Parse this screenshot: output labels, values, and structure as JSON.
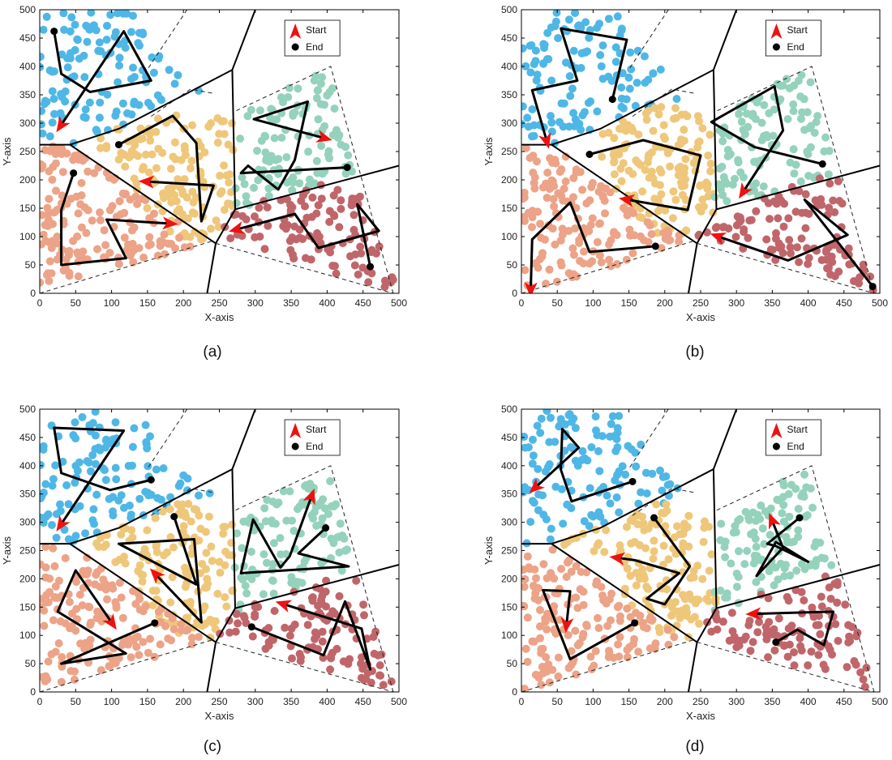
{
  "colors": {
    "blue": "#4fb7e6",
    "yellow": "#efc77a",
    "green": "#94d2bc",
    "salmon": "#eca387",
    "red": "#c0666a",
    "path": "#000000",
    "start": "#ee1111"
  },
  "chart_data": [
    {
      "type": "scatter",
      "caption": "(a)",
      "xlabel": "X-axis",
      "ylabel": "Y-axis",
      "xlim": [
        0,
        500
      ],
      "ylim": [
        0,
        500
      ],
      "xticks": [
        "0",
        "50",
        "100",
        "150",
        "200",
        "250",
        "300",
        "350",
        "400",
        "450",
        "500"
      ],
      "yticks": [
        "0",
        "50",
        "100",
        "150",
        "200",
        "250",
        "300",
        "350",
        "400",
        "450",
        "500"
      ],
      "legend": {
        "position": "top-right",
        "start": "Start",
        "end": "End"
      },
      "paths": [
        {
          "region": "blue",
          "points": [
            [
              20,
              462
            ],
            [
              30,
              387
            ],
            [
              70,
              355
            ],
            [
              155,
              375
            ],
            [
              117,
              462
            ],
            [
              30,
              297
            ]
          ]
        },
        {
          "region": "yellow",
          "points": [
            [
              110,
              262
            ],
            [
              185,
              313
            ],
            [
              218,
              265
            ],
            [
              225,
              127
            ],
            [
              242,
              190
            ],
            [
              150,
              197
            ]
          ]
        },
        {
          "region": "green",
          "points": [
            [
              428,
              222
            ],
            [
              280,
              212
            ],
            [
              290,
              225
            ],
            [
              332,
              183
            ],
            [
              355,
              235
            ],
            [
              373,
              338
            ],
            [
              298,
              307
            ],
            [
              395,
              274
            ]
          ]
        },
        {
          "region": "salmon",
          "points": [
            [
              47,
              212
            ],
            [
              30,
              147
            ],
            [
              30,
              50
            ],
            [
              120,
              62
            ],
            [
              93,
              130
            ],
            [
              180,
              123
            ]
          ]
        },
        {
          "region": "red",
          "points": [
            [
              460,
              47
            ],
            [
              442,
              157
            ],
            [
              472,
              110
            ],
            [
              388,
              80
            ],
            [
              355,
              140
            ],
            [
              275,
              113
            ]
          ]
        }
      ]
    },
    {
      "type": "scatter",
      "caption": "(b)",
      "xlabel": "X-axis",
      "ylabel": "Y-axis",
      "xlim": [
        0,
        500
      ],
      "ylim": [
        0,
        500
      ],
      "xticks": [
        "0",
        "50",
        "100",
        "150",
        "200",
        "250",
        "300",
        "350",
        "400",
        "450",
        "500"
      ],
      "yticks": [
        "0",
        "50",
        "100",
        "150",
        "200",
        "250",
        "300",
        "350",
        "400",
        "450",
        "500"
      ],
      "legend": {
        "position": "top-right",
        "start": "Start",
        "end": "End"
      },
      "paths": [
        {
          "region": "blue",
          "points": [
            [
              127,
              342
            ],
            [
              147,
              447
            ],
            [
              55,
              467
            ],
            [
              78,
              375
            ],
            [
              15,
              358
            ],
            [
              35,
              270
            ]
          ]
        },
        {
          "region": "yellow",
          "points": [
            [
              95,
              245
            ],
            [
              170,
              270
            ],
            [
              250,
              243
            ],
            [
              232,
              147
            ],
            [
              148,
              165
            ]
          ]
        },
        {
          "region": "green",
          "points": [
            [
              420,
              228
            ],
            [
              325,
              258
            ],
            [
              265,
              302
            ],
            [
              353,
              365
            ],
            [
              365,
              287
            ],
            [
              310,
              180
            ]
          ]
        },
        {
          "region": "salmon",
          "points": [
            [
              187,
              83
            ],
            [
              95,
              73
            ],
            [
              68,
              160
            ],
            [
              15,
              95
            ],
            [
              13,
              8
            ]
          ]
        },
        {
          "region": "red",
          "points": [
            [
              490,
              12
            ],
            [
              395,
              165
            ],
            [
              455,
              103
            ],
            [
              372,
              58
            ],
            [
              275,
              100
            ]
          ]
        }
      ]
    },
    {
      "type": "scatter",
      "caption": "(c)",
      "xlabel": "X-axis",
      "ylabel": "Y-axis",
      "xlim": [
        0,
        500
      ],
      "ylim": [
        0,
        500
      ],
      "xticks": [
        "0",
        "50",
        "100",
        "150",
        "200",
        "250",
        "300",
        "350",
        "400",
        "450",
        "500"
      ],
      "yticks": [
        "0",
        "50",
        "100",
        "150",
        "200",
        "250",
        "300",
        "350",
        "400",
        "450",
        "500"
      ],
      "legend": {
        "position": "top-right",
        "start": "Start",
        "end": "End"
      },
      "paths": [
        {
          "region": "blue",
          "points": [
            [
              155,
              375
            ],
            [
              98,
              357
            ],
            [
              30,
              387
            ],
            [
              20,
              467
            ],
            [
              117,
              462
            ],
            [
              30,
              297
            ]
          ]
        },
        {
          "region": "yellow",
          "points": [
            [
              187,
              310
            ],
            [
              218,
              190
            ],
            [
              110,
              262
            ],
            [
              215,
              270
            ],
            [
              225,
              123
            ],
            [
              162,
              207
            ]
          ]
        },
        {
          "region": "green",
          "points": [
            [
              398,
              290
            ],
            [
              360,
              245
            ],
            [
              430,
              222
            ],
            [
              280,
              210
            ],
            [
              297,
              305
            ],
            [
              335,
              220
            ],
            [
              348,
              240
            ],
            [
              378,
              345
            ]
          ]
        },
        {
          "region": "salmon",
          "points": [
            [
              160,
              122
            ],
            [
              30,
              50
            ],
            [
              120,
              68
            ],
            [
              25,
              142
            ],
            [
              50,
              215
            ],
            [
              100,
              123
            ]
          ]
        },
        {
          "region": "red",
          "points": [
            [
              295,
              115
            ],
            [
              395,
              65
            ],
            [
              425,
              160
            ],
            [
              460,
              40
            ],
            [
              448,
              112
            ],
            [
              340,
              155
            ]
          ]
        }
      ]
    },
    {
      "type": "scatter",
      "caption": "(d)",
      "xlabel": "X-axis",
      "ylabel": "Y-axis",
      "xlim": [
        0,
        500
      ],
      "ylim": [
        0,
        500
      ],
      "xticks": [
        "0",
        "50",
        "100",
        "150",
        "200",
        "250",
        "300",
        "350",
        "400",
        "450",
        "500"
      ],
      "yticks": [
        "0",
        "50",
        "100",
        "150",
        "200",
        "250",
        "300",
        "350",
        "400",
        "450",
        "500"
      ],
      "legend": {
        "position": "top-right",
        "start": "Start",
        "end": "End"
      },
      "paths": [
        {
          "region": "blue",
          "points": [
            [
              155,
              372
            ],
            [
              70,
              337
            ],
            [
              55,
              393
            ],
            [
              57,
              465
            ],
            [
              80,
              432
            ],
            [
              20,
              362
            ]
          ]
        },
        {
          "region": "yellow",
          "points": [
            [
              185,
              308
            ],
            [
              235,
              222
            ],
            [
              200,
              155
            ],
            [
              175,
              165
            ],
            [
              220,
              210
            ],
            [
              158,
              233
            ],
            [
              135,
              237
            ]
          ]
        },
        {
          "region": "green",
          "points": [
            [
              388,
              308
            ],
            [
              343,
              262
            ],
            [
              355,
              258
            ],
            [
              400,
              230
            ],
            [
              355,
              265
            ],
            [
              328,
              205
            ],
            [
              365,
              255
            ],
            [
              350,
              302
            ]
          ]
        },
        {
          "region": "salmon",
          "points": [
            [
              158,
              122
            ],
            [
              68,
              58
            ],
            [
              30,
              180
            ],
            [
              68,
              178
            ],
            [
              63,
              120
            ]
          ]
        },
        {
          "region": "red",
          "points": [
            [
              355,
              88
            ],
            [
              385,
              110
            ],
            [
              422,
              83
            ],
            [
              435,
              142
            ],
            [
              325,
              138
            ]
          ]
        }
      ]
    }
  ]
}
